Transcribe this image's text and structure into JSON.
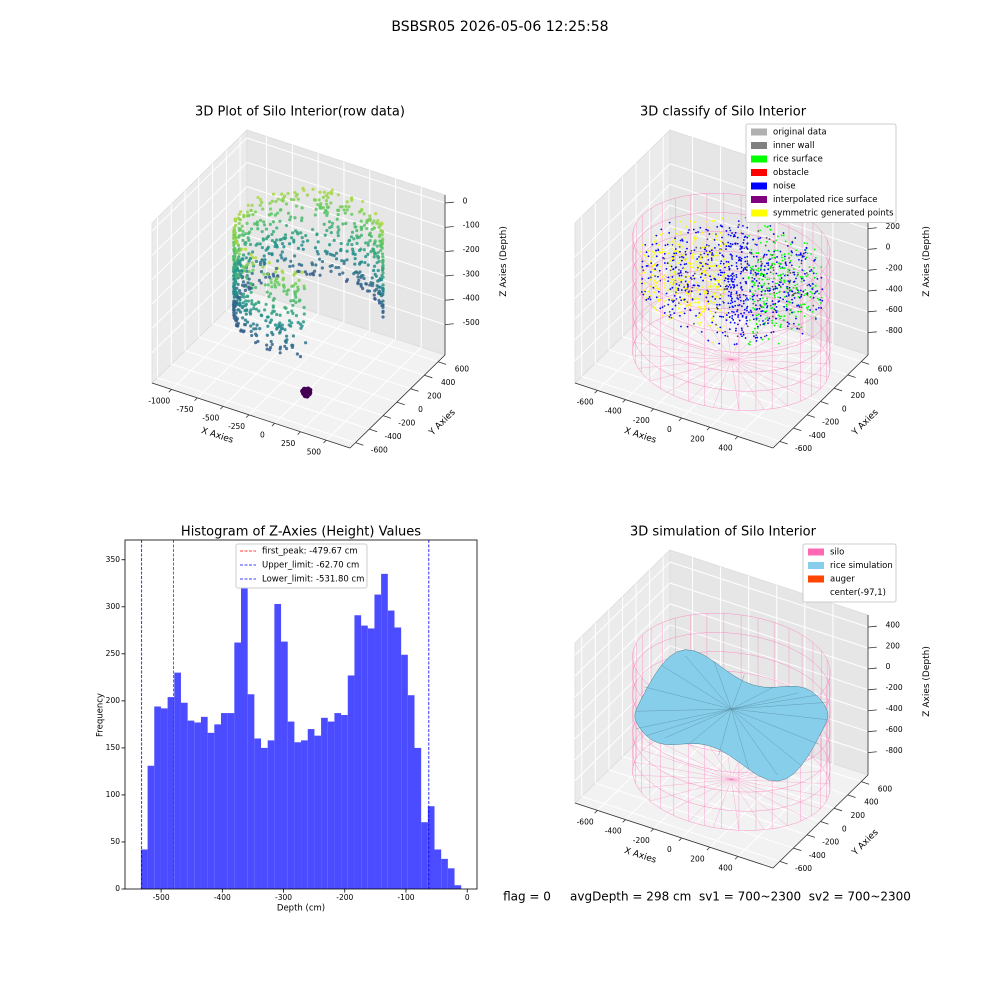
{
  "suptitle": "BSBSR05 2026-05-06 12:25:58",
  "chart_data": [
    {
      "type": "scatter3d",
      "title": "3D Plot of Silo Interior(row data)",
      "xlabel": "X Axies",
      "ylabel": "Y Axies",
      "zlabel": "Z Axies (Depth)",
      "xlim": [
        -1190,
        730
      ],
      "ylim": [
        -680,
        700
      ],
      "zlim": [
        -625,
        33
      ],
      "xticks": [
        -1000,
        -750,
        -500,
        -250,
        0,
        250,
        500
      ],
      "yticks": [
        -600,
        -400,
        -200,
        0,
        200,
        400,
        600
      ],
      "zticks": [
        0,
        -100,
        -200,
        -300,
        -400,
        -500
      ]
    },
    {
      "type": "classify3d",
      "title": "3D classify of Silo Interior",
      "xlabel": "X Axies",
      "ylabel": "Y Axies",
      "zlabel": "Z Axies (Depth)",
      "xlim": [
        -760,
        650
      ],
      "ylim": [
        -700,
        700
      ],
      "zlim": [
        -1015,
        523
      ],
      "xticks": [
        -600,
        -400,
        -200,
        0,
        200,
        400
      ],
      "yticks": [
        -600,
        -400,
        -200,
        0,
        200,
        400,
        600
      ],
      "zticks": [
        200,
        0,
        -200,
        -400,
        -600,
        -800
      ],
      "legend": [
        {
          "name": "original data",
          "color": "#b0b0b0"
        },
        {
          "name": "inner wall",
          "color": "#808080"
        },
        {
          "name": "rice surface",
          "color": "#00ff00"
        },
        {
          "name": "obstacle",
          "color": "#ff0000"
        },
        {
          "name": "noise",
          "color": "#0000ff"
        },
        {
          "name": "interpolated rice surface",
          "color": "#800080"
        },
        {
          "name": "symmetric generated points",
          "color": "#ffff00"
        }
      ]
    },
    {
      "type": "histogram",
      "title": "Histogram of Z-Axies (Height) Values",
      "xlabel": "Depth (cm)",
      "ylabel": "Frequency",
      "color": "#4b4bff",
      "bins": [
        -533,
        -522.1,
        -511.2,
        -500.3,
        -489.4,
        -478.5,
        -467.6,
        -456.7,
        -445.8,
        -434.9,
        -424,
        -413.1,
        -402.2,
        -391.3,
        -380.4,
        -369.5,
        -358.6,
        -347.7,
        -336.8,
        -325.9,
        -315,
        -304.1,
        -293.2,
        -282.3,
        -271.4,
        -260.5,
        -249.6,
        -238.7,
        -227.8,
        -216.9,
        -206,
        -195.1,
        -184.2,
        -173.3,
        -162.4,
        -151.5,
        -140.6,
        -129.7,
        -118.8,
        -107.9,
        -97,
        -86.1,
        -75.2,
        -64.3,
        -53.4,
        -42.5,
        -31.6,
        -20.7,
        -9.8
      ],
      "values": [
        42,
        131,
        194,
        192,
        204,
        230,
        198,
        179,
        177,
        183,
        166,
        175,
        187,
        187,
        262,
        353,
        207,
        160,
        150,
        158,
        303,
        263,
        178,
        156,
        158,
        170,
        163,
        182,
        178,
        187,
        185,
        227,
        291,
        280,
        277,
        313,
        335,
        296,
        278,
        249,
        206,
        150,
        71,
        88,
        42,
        32,
        22,
        4
      ],
      "xlim": [
        -559,
        16
      ],
      "ylim": [
        0,
        371
      ],
      "xticks": [
        -500,
        -400,
        -300,
        -200,
        -100,
        0
      ],
      "yticks": [
        0,
        50,
        100,
        150,
        200,
        250,
        300,
        350
      ],
      "vlines": [
        {
          "value": -479.67,
          "label": "first_peak: -479.67 cm",
          "color": "#ff0000"
        },
        {
          "value": -62.7,
          "label": "Upper_limit: -62.70 cm",
          "color": "#0000ff"
        },
        {
          "value": -531.8,
          "label": "Lower_limit: -531.80 cm",
          "color": "#0000ff"
        }
      ]
    },
    {
      "type": "surface3d",
      "title": "3D simulation of Silo Interior",
      "xlabel": "X Axies",
      "ylabel": "Y Axies",
      "zlabel": "Z Axies (Depth)",
      "xlim": [
        -760,
        650
      ],
      "ylim": [
        -700,
        700
      ],
      "zlim": [
        -1014,
        515
      ],
      "xticks": [
        -600,
        -400,
        -200,
        0,
        200,
        400
      ],
      "yticks": [
        -600,
        -400,
        -200,
        0,
        200,
        400,
        600
      ],
      "zticks": [
        400,
        200,
        0,
        -200,
        -400,
        -600,
        -800
      ],
      "legend": [
        {
          "name": "silo",
          "color": "#ff69b4"
        },
        {
          "name": "rice simulation",
          "color": "#87ceeb"
        },
        {
          "name": "auger",
          "color": "#ff4500"
        },
        {
          "name": "center(-97,1)",
          "color": "#ffffff"
        }
      ]
    }
  ],
  "footer": "flag = 0     avgDepth = 298 cm  sv1 = 700~2300  sv2 = 700~2300"
}
